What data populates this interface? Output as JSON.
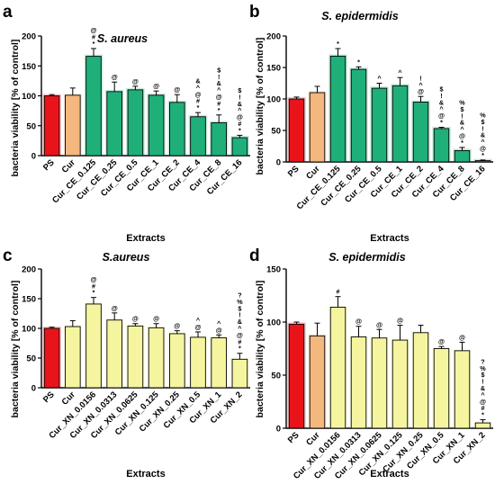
{
  "figure": {
    "panels": [
      {
        "letter": "a",
        "title": "S. aureus",
        "ylabel": "bacteria viability [% of control]",
        "xlabel": "Extracts"
      },
      {
        "letter": "b",
        "title": "S. epidermidis",
        "ylabel": "bacteria viability [% of control]",
        "xlabel": "Extracts"
      },
      {
        "letter": "c",
        "title": "S.aureus",
        "ylabel": "bacteria viability [% of control]",
        "xlabel": "Extracts"
      },
      {
        "letter": "d",
        "title": "S. epidermidis",
        "ylabel": "bacteria viability [% of control]",
        "xlabel": "Extracts"
      }
    ]
  },
  "chart_data": [
    {
      "type": "bar",
      "panel": "a",
      "title": "S. aureus",
      "xlabel": "Extracts",
      "ylabel": "bacteria viability [% of control]",
      "ylim": [
        0,
        200
      ],
      "yticks": [
        0,
        50,
        100,
        150,
        200
      ],
      "categories": [
        "PS",
        "Cur",
        "Cur_CE_0.125",
        "Cur_CE_0.25",
        "Cur_CE_0.5",
        "Cur_CE_1",
        "Cur_CE_2",
        "Cur_CE_4",
        "Cur_CE_8",
        "Cur_CE_16"
      ],
      "values": [
        100,
        101,
        166,
        107,
        110,
        101,
        89,
        65,
        55,
        30
      ],
      "errors": [
        2,
        12,
        13,
        16,
        6,
        7,
        13,
        7,
        13,
        4
      ],
      "annotations": [
        "",
        "",
        "@\n#\n*",
        "@",
        "@",
        "@",
        "@",
        "&\n^\n@\n#\n*",
        "$\n!\n&\n^\n@\n#\n*",
        "$\n!\n&\n^\n@\n#\n*"
      ],
      "colors": [
        "#e8141a",
        "#f4b77e",
        "#1fb07a",
        "#1fb07a",
        "#1fb07a",
        "#1fb07a",
        "#1fb07a",
        "#1fb07a",
        "#1fb07a",
        "#1fb07a"
      ],
      "grid": false
    },
    {
      "type": "bar",
      "panel": "b",
      "title": "S. epidermidis",
      "xlabel": "Extracts",
      "ylabel": "bacteria viability [% of control]",
      "ylim": [
        0,
        200
      ],
      "yticks": [
        0,
        50,
        100,
        150,
        200
      ],
      "categories": [
        "PS",
        "Cur",
        "Cur_CE_0.125",
        "Cur_CE_0.25",
        "Cur_CE_0.5",
        "Cur_CE_1",
        "Cur_CE_2",
        "Cur_CE_4",
        "Cur_CE_8",
        "Cur_CE_16"
      ],
      "values": [
        100,
        110,
        168,
        147,
        117,
        121,
        95,
        53,
        18,
        2
      ],
      "errors": [
        3,
        10,
        12,
        4,
        8,
        13,
        9,
        2,
        5,
        1
      ],
      "annotations": [
        "",
        "",
        "*",
        "*",
        "^",
        "^",
        "!\n^\n@",
        "$\n!\n&\n^\n@\n*",
        "%\n$\n!\n&\n^\n@\n*",
        "%\n$\n!\n&\n^\n@\n*"
      ],
      "colors": [
        "#e8141a",
        "#f4b77e",
        "#1fb07a",
        "#1fb07a",
        "#1fb07a",
        "#1fb07a",
        "#1fb07a",
        "#1fb07a",
        "#1fb07a",
        "#1fb07a"
      ],
      "grid": false
    },
    {
      "type": "bar",
      "panel": "c",
      "title": "S.aureus",
      "xlabel": "Extracts",
      "ylabel": "bacteria viability [% of control]",
      "ylim": [
        0,
        200
      ],
      "yticks": [
        0,
        50,
        100,
        150,
        200
      ],
      "categories": [
        "PS",
        "Cur",
        "Cur_XN_0.0156",
        "Cur_XN_0.0313",
        "Cur_XN_0.0625",
        "Cur_XN_0.125",
        "Cur_XN_0.25",
        "Cur_XN_0.5",
        "Cur_XN_1",
        "Cur_XN_2"
      ],
      "values": [
        100,
        103,
        141,
        114,
        104,
        101,
        91,
        85,
        84,
        48
      ],
      "errors": [
        2,
        10,
        11,
        12,
        4,
        7,
        5,
        9,
        5,
        10
      ],
      "annotations": [
        "",
        "",
        "@\n#\n*",
        "@",
        "@",
        "@",
        "@",
        "^\n@",
        "^\n@",
        "?\n%\n$\n!\n&\n^\n@\n#\n*"
      ],
      "colors": [
        "#e8141a",
        "#f5f5a0",
        "#f5f5a0",
        "#f5f5a0",
        "#f5f5a0",
        "#f5f5a0",
        "#f5f5a0",
        "#f5f5a0",
        "#f5f5a0",
        "#f5f5a0"
      ],
      "grid": false
    },
    {
      "type": "bar",
      "panel": "d",
      "title": "S. epidermidis",
      "xlabel": "Extracts",
      "ylabel": "bacteria viability [% of control]",
      "ylim": [
        0,
        150
      ],
      "yticks": [
        0,
        50,
        100,
        150
      ],
      "categories": [
        "PS",
        "Cur",
        "Cur_XN_0.0156",
        "Cur_XN_0.0313",
        "Cur_XN_0.0625",
        "Cur_XN_0.125",
        "Cur_XN_0.25",
        "Cur_XN_0.5",
        "Cur_XN_1",
        "Cur_XN_2"
      ],
      "values": [
        98,
        87,
        114,
        86,
        85,
        83,
        90,
        75,
        73,
        5
      ],
      "errors": [
        2,
        12,
        10,
        10,
        8,
        14,
        7,
        2,
        8,
        3
      ],
      "annotations": [
        "",
        "",
        "#",
        "@",
        "@",
        "@",
        "",
        "@",
        "@",
        "?\n%\n$\n!\n&\n^\n@\n#\n*"
      ],
      "colors": [
        "#e8141a",
        "#f4b77e",
        "#f5f5a0",
        "#f5f5a0",
        "#f5f5a0",
        "#f5f5a0",
        "#f5f5a0",
        "#f5f5a0",
        "#f5f5a0",
        "#f5f5a0"
      ],
      "grid": false
    }
  ]
}
